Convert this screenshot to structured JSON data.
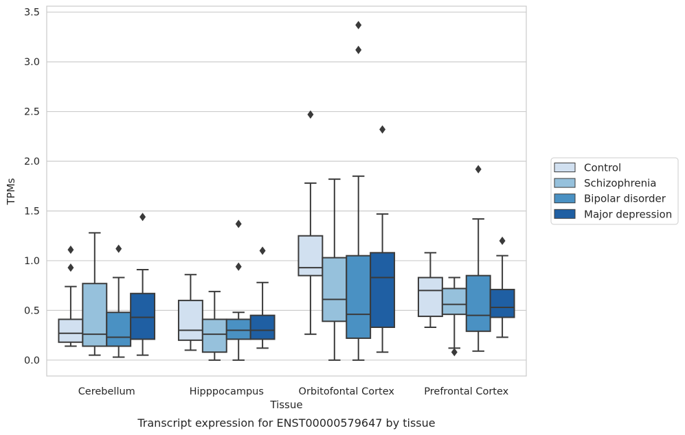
{
  "caption": "Transcript expression for ENST00000579647 by tissue",
  "colors": {
    "Control": "#d1e0f0",
    "Schizophrenia": "#96c1dc",
    "Bipolar disorder": "#4a91c3",
    "Major depression": "#1f5fa3",
    "box_edge": "#3a3a3a",
    "grid": "#cccccc",
    "axes_frame": "#cccccc"
  },
  "chart_data": {
    "type": "box",
    "xlabel": "Tissue",
    "ylabel": "TPMs",
    "ylim": [
      -0.16,
      3.56
    ],
    "yticks": [
      0.0,
      0.5,
      1.0,
      1.5,
      2.0,
      2.5,
      3.0,
      3.5
    ],
    "ytick_labels": [
      "0.0",
      "0.5",
      "1.0",
      "1.5",
      "2.0",
      "2.5",
      "3.0",
      "3.5"
    ],
    "grid": "horizontal",
    "legend_position": "right-outside",
    "categories": [
      "Cerebellum",
      "Hipppocampus",
      "Orbitofontal Cortex",
      "Prefrontal Cortex"
    ],
    "series": [
      {
        "name": "Control",
        "boxes": [
          {
            "whislo": 0.14,
            "q1": 0.18,
            "med": 0.27,
            "q3": 0.41,
            "whishi": 0.74,
            "fliers": [
              0.93,
              1.11
            ]
          },
          {
            "whislo": 0.1,
            "q1": 0.2,
            "med": 0.3,
            "q3": 0.6,
            "whishi": 0.86,
            "fliers": []
          },
          {
            "whislo": 0.26,
            "q1": 0.85,
            "med": 0.93,
            "q3": 1.25,
            "whishi": 1.78,
            "fliers": [
              2.47
            ]
          },
          {
            "whislo": 0.33,
            "q1": 0.44,
            "med": 0.7,
            "q3": 0.83,
            "whishi": 1.08,
            "fliers": []
          }
        ]
      },
      {
        "name": "Schizophrenia",
        "boxes": [
          {
            "whislo": 0.05,
            "q1": 0.14,
            "med": 0.26,
            "q3": 0.77,
            "whishi": 1.28,
            "fliers": []
          },
          {
            "whislo": 0.0,
            "q1": 0.08,
            "med": 0.26,
            "q3": 0.41,
            "whishi": 0.69,
            "fliers": []
          },
          {
            "whislo": 0.0,
            "q1": 0.39,
            "med": 0.61,
            "q3": 1.03,
            "whishi": 1.82,
            "fliers": []
          },
          {
            "whislo": 0.12,
            "q1": 0.46,
            "med": 0.56,
            "q3": 0.72,
            "whishi": 0.83,
            "fliers": [
              0.08
            ]
          }
        ]
      },
      {
        "name": "Bipolar disorder",
        "boxes": [
          {
            "whislo": 0.03,
            "q1": 0.14,
            "med": 0.23,
            "q3": 0.48,
            "whishi": 0.83,
            "fliers": [
              1.12
            ]
          },
          {
            "whislo": 0.0,
            "q1": 0.21,
            "med": 0.3,
            "q3": 0.41,
            "whishi": 0.48,
            "fliers": [
              0.94,
              1.37
            ]
          },
          {
            "whislo": 0.0,
            "q1": 0.22,
            "med": 0.46,
            "q3": 1.05,
            "whishi": 1.85,
            "fliers": [
              3.12,
              3.37
            ]
          },
          {
            "whislo": 0.09,
            "q1": 0.29,
            "med": 0.45,
            "q3": 0.85,
            "whishi": 1.42,
            "fliers": [
              1.92
            ]
          }
        ]
      },
      {
        "name": "Major depression",
        "boxes": [
          {
            "whislo": 0.05,
            "q1": 0.21,
            "med": 0.43,
            "q3": 0.67,
            "whishi": 0.91,
            "fliers": [
              1.44
            ]
          },
          {
            "whislo": 0.12,
            "q1": 0.21,
            "med": 0.3,
            "q3": 0.45,
            "whishi": 0.78,
            "fliers": [
              1.1
            ]
          },
          {
            "whislo": 0.08,
            "q1": 0.33,
            "med": 0.83,
            "q3": 1.08,
            "whishi": 1.47,
            "fliers": [
              2.32
            ]
          },
          {
            "whislo": 0.23,
            "q1": 0.43,
            "med": 0.53,
            "q3": 0.71,
            "whishi": 1.05,
            "fliers": [
              1.2
            ]
          }
        ]
      }
    ]
  }
}
